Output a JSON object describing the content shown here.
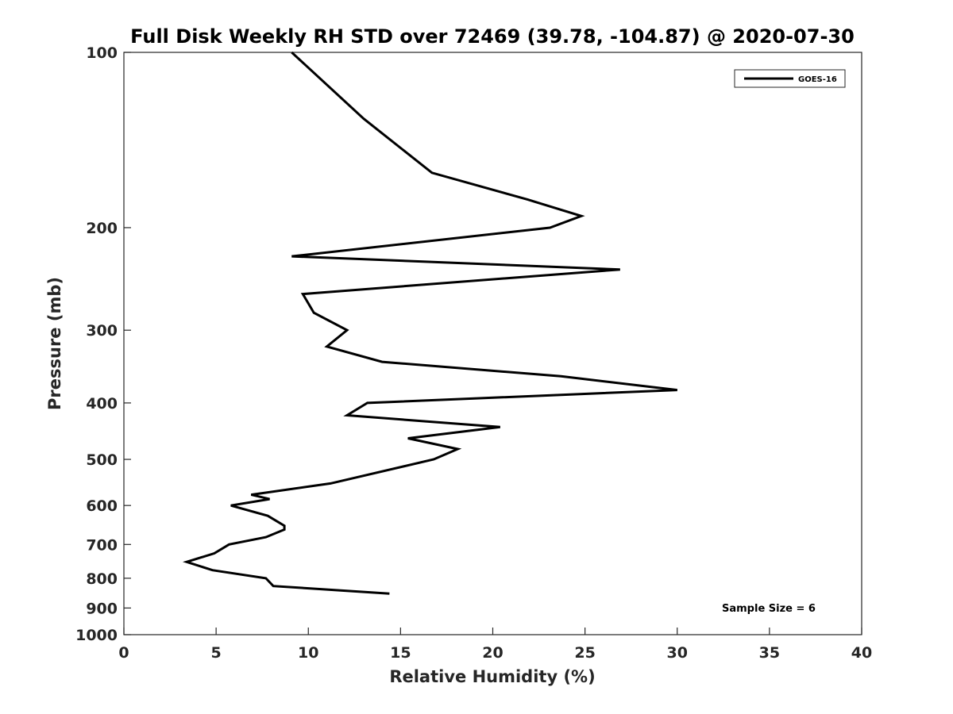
{
  "chart_data": {
    "type": "line",
    "title": "Full Disk Weekly RH STD over 72469 (39.78, -104.87) @ 2020-07-30",
    "xlabel": "Relative Humidity (%)",
    "ylabel": "Pressure (mb)",
    "xlim": [
      0,
      40
    ],
    "ylim": [
      1000,
      100
    ],
    "y_scale": "log",
    "x_ticks": [
      0,
      5,
      10,
      15,
      20,
      25,
      30,
      35,
      40
    ],
    "y_ticks": [
      100,
      200,
      300,
      400,
      500,
      600,
      700,
      800,
      900,
      1000
    ],
    "legend": {
      "location": "top-right",
      "entries": [
        "GOES-16"
      ]
    },
    "annotation": "Sample Size = 6",
    "series": [
      {
        "name": "GOES-16",
        "color": "#000000",
        "points": [
          {
            "x": 9.1,
            "y": 100
          },
          {
            "x": 13.0,
            "y": 130
          },
          {
            "x": 16.7,
            "y": 161
          },
          {
            "x": 21.9,
            "y": 179
          },
          {
            "x": 24.8,
            "y": 191
          },
          {
            "x": 23.1,
            "y": 200
          },
          {
            "x": 9.1,
            "y": 224
          },
          {
            "x": 26.9,
            "y": 236
          },
          {
            "x": 9.7,
            "y": 260
          },
          {
            "x": 10.3,
            "y": 280
          },
          {
            "x": 12.1,
            "y": 300
          },
          {
            "x": 11.0,
            "y": 320
          },
          {
            "x": 14.0,
            "y": 340
          },
          {
            "x": 23.7,
            "y": 360
          },
          {
            "x": 30.0,
            "y": 380
          },
          {
            "x": 13.2,
            "y": 400
          },
          {
            "x": 12.1,
            "y": 420
          },
          {
            "x": 20.4,
            "y": 440
          },
          {
            "x": 15.4,
            "y": 460
          },
          {
            "x": 18.1,
            "y": 480
          },
          {
            "x": 16.8,
            "y": 500
          },
          {
            "x": 11.2,
            "y": 550
          },
          {
            "x": 6.9,
            "y": 575
          },
          {
            "x": 7.9,
            "y": 585
          },
          {
            "x": 5.8,
            "y": 600
          },
          {
            "x": 7.8,
            "y": 625
          },
          {
            "x": 8.7,
            "y": 650
          },
          {
            "x": 8.7,
            "y": 660
          },
          {
            "x": 7.7,
            "y": 680
          },
          {
            "x": 5.7,
            "y": 700
          },
          {
            "x": 4.9,
            "y": 725
          },
          {
            "x": 3.4,
            "y": 750
          },
          {
            "x": 4.8,
            "y": 775
          },
          {
            "x": 7.7,
            "y": 800
          },
          {
            "x": 8.1,
            "y": 825
          },
          {
            "x": 14.4,
            "y": 850
          }
        ]
      }
    ]
  }
}
